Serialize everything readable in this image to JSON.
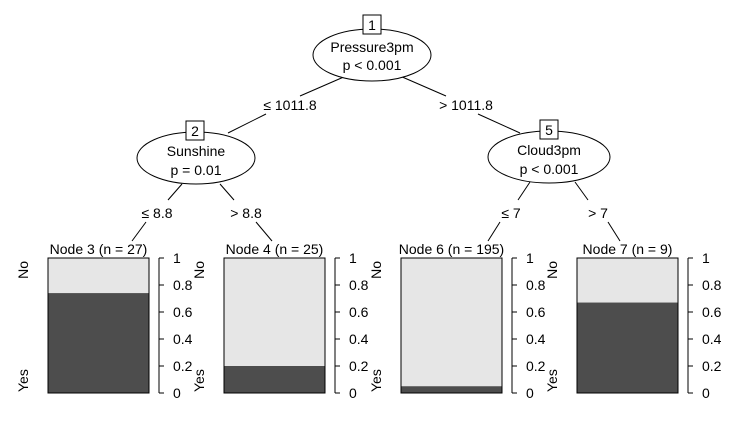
{
  "colors": {
    "no": "#e6e6e6",
    "yes": "#4d4d4d",
    "line": "#000000"
  },
  "y_axis_labels": {
    "top": "No",
    "bottom": "Yes"
  },
  "y_ticks": [
    "0",
    "0.2",
    "0.4",
    "0.6",
    "0.8",
    "1"
  ],
  "y_tick_values": [
    0,
    0.2,
    0.4,
    0.6,
    0.8,
    1
  ],
  "inner_nodes": [
    {
      "id": "1",
      "variable": "Pressure3pm",
      "pvalue": "p < 0.001"
    },
    {
      "id": "2",
      "variable": "Sunshine",
      "pvalue": "p = 0.01"
    },
    {
      "id": "5",
      "variable": "Cloud3pm",
      "pvalue": "p < 0.001"
    }
  ],
  "edges": [
    {
      "label": "≤ 1011.8"
    },
    {
      "label": "> 1011.8"
    },
    {
      "label": "≤ 8.8"
    },
    {
      "label": "> 8.8"
    },
    {
      "label": "≤ 7"
    },
    {
      "label": "> 7"
    }
  ],
  "terminal_nodes": [
    {
      "title": "Node 3 (n = 27)",
      "yes_fraction": 0.74
    },
    {
      "title": "Node 4 (n = 25)",
      "yes_fraction": 0.2
    },
    {
      "title": "Node 6 (n = 195)",
      "yes_fraction": 0.05
    },
    {
      "title": "Node 7 (n = 9)",
      "yes_fraction": 0.67
    }
  ]
}
